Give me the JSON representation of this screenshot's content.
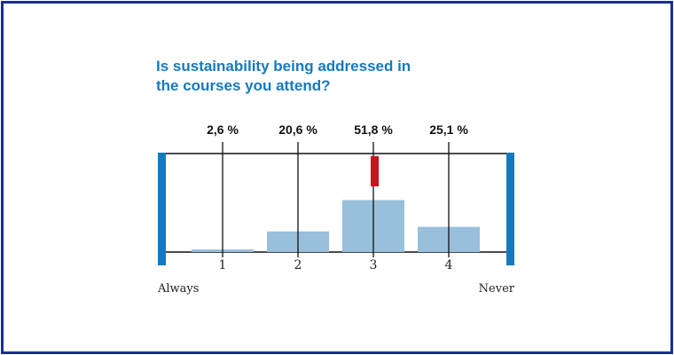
{
  "colors": {
    "frame": "#1a2f8c",
    "title": "#1679be",
    "bar": "#98bfdb",
    "end_marker": "#1679be",
    "median_marker": "#c8141e",
    "axis": "#111111"
  },
  "chart_data": {
    "type": "bar",
    "title": "Is sustainability being addressed in the courses you attend?",
    "title_lines": [
      "Is sustainability being addressed in",
      "the courses you attend?"
    ],
    "categories": [
      "1",
      "2",
      "3",
      "4"
    ],
    "values": [
      2.6,
      20.6,
      51.8,
      25.1
    ],
    "value_labels": [
      "2,6 %",
      "20,6 %",
      "51,8 %",
      "25,1 %"
    ],
    "scale_left_label": "Always",
    "scale_right_label": "Never",
    "ylim": [
      0,
      100
    ],
    "median_category": "3",
    "grid": false
  }
}
